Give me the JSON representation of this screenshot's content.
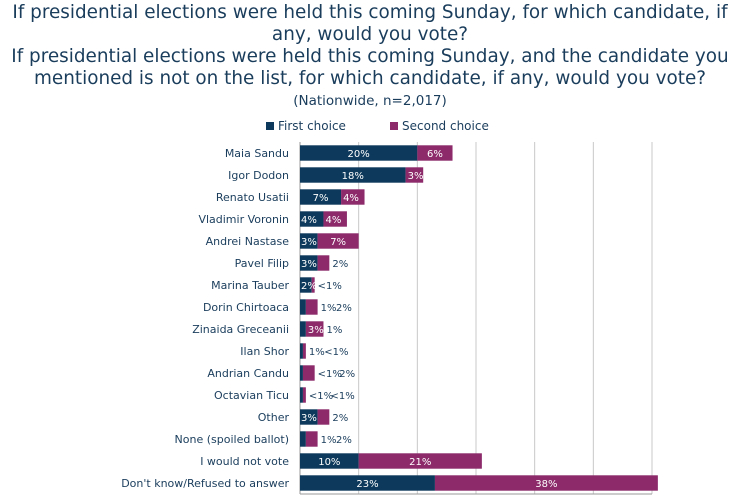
{
  "title_lines": [
    "If presidential elections were held this coming Sunday, for which candidate, if",
    "any, would you vote?",
    "If presidential elections were held this coming Sunday, and the candidate you",
    "mentioned is not on the list, for which candidate, if any, would you vote?"
  ],
  "subtitle": "(Nationwide, n=2,017)",
  "colors": {
    "first": "#0d3a5c",
    "second": "#8c2a6a",
    "text": "#1a3d5c",
    "grid": "#c8c8c8"
  },
  "chart_data": {
    "type": "bar",
    "orientation": "horizontal",
    "stacked": true,
    "legend_position": "top",
    "xlim": [
      0,
      60
    ],
    "grid": true,
    "categories": [
      "Maia Sandu",
      "Igor Dodon",
      "Renato Usatii",
      "Vladimir Voronin",
      "Andrei Nastase",
      "Pavel Filip",
      "Marina Tauber",
      "Dorin Chirtoaca",
      "Zinaida Greceanii",
      "Ilan Shor",
      "Andrian Candu",
      "Octavian Ticu",
      "Other",
      "None (spoiled ballot)",
      "I would not vote",
      "Don't know/Refused to answer"
    ],
    "series": [
      {
        "name": "First choice",
        "values": [
          20,
          18,
          7,
          4,
          3,
          3,
          2,
          1,
          1,
          0.5,
          0.5,
          0.5,
          3,
          1,
          10,
          23
        ],
        "labels": [
          "20%",
          "18%",
          "7%",
          "4%",
          "3%",
          "3%",
          "2%",
          "1%",
          "1%",
          "1%",
          "<1%",
          "<1%",
          "3%",
          "1%",
          "10%",
          "23%"
        ]
      },
      {
        "name": "Second choice",
        "values": [
          6,
          3,
          4,
          4,
          7,
          2,
          0.5,
          2,
          3,
          0.5,
          2,
          0.5,
          2,
          2,
          21,
          38
        ],
        "labels": [
          "6%",
          "3%",
          "4%",
          "4%",
          "7%",
          "2%",
          "<1%",
          "2%",
          "3%",
          "<1%",
          "2%",
          "<1%",
          "2%",
          "2%",
          "21%",
          "38%"
        ]
      }
    ]
  }
}
